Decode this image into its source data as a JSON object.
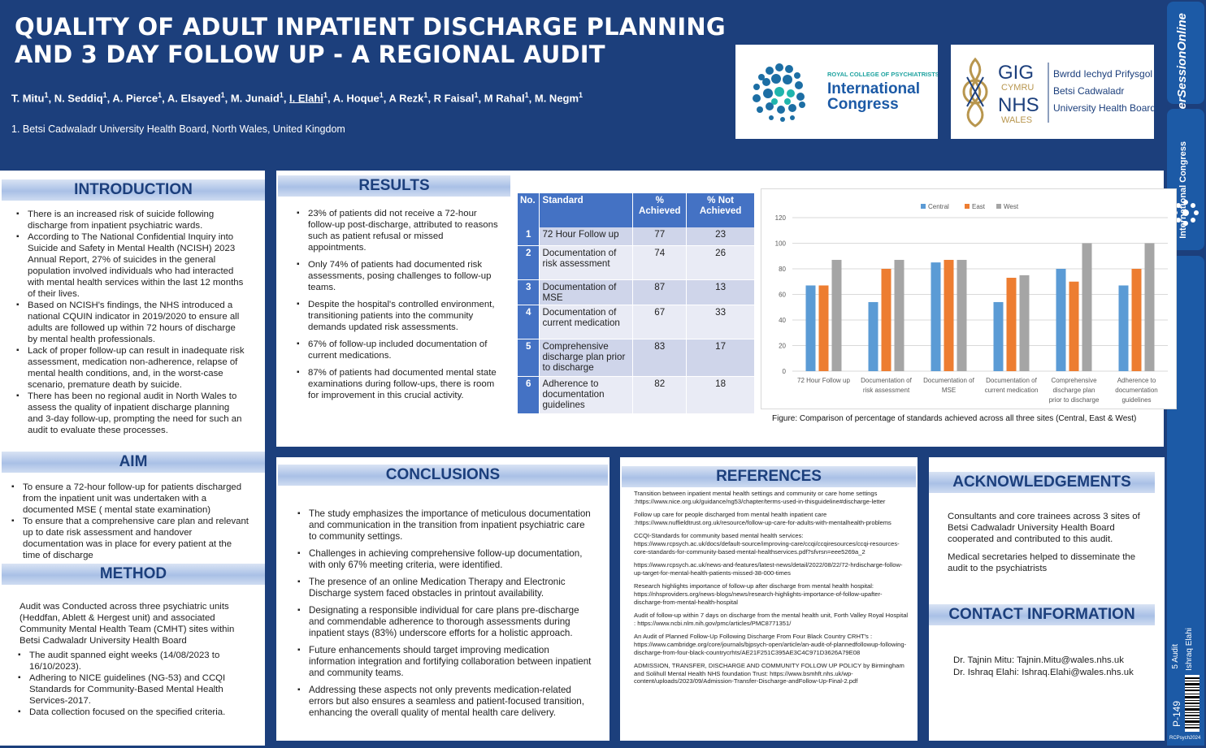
{
  "header": {
    "title_line1": "QUALITY OF ADULT INPATIENT DISCHARGE PLANNING",
    "title_line2": "AND 3 DAY FOLLOW UP - A REGIONAL AUDIT",
    "authors": [
      {
        "name": "T. Mitu",
        "sup": "1"
      },
      {
        "name": "N. Seddiq",
        "sup": "1"
      },
      {
        "name": "A. Pierce",
        "sup": "1"
      },
      {
        "name": "A. Elsayed",
        "sup": "1"
      },
      {
        "name": "M. Junaid",
        "sup": "1"
      },
      {
        "name": "I. Elahi",
        "sup": "1"
      },
      {
        "name": "A. Hoque",
        "sup": "1"
      },
      {
        "name": "A Rezk",
        "sup": "1"
      },
      {
        "name": "R Faisal",
        "sup": "1"
      },
      {
        "name": "M Rahal",
        "sup": "1"
      },
      {
        "name": "M. Negm",
        "sup": "1"
      }
    ],
    "affiliation": "1. Betsi Cadwaladr University Health Board, North Wales, United Kingdom",
    "logo_rcpsych": {
      "line1": "ROYAL COLLEGE OF PSYCHIATRISTS",
      "line2": "International",
      "line3": "Congress"
    },
    "logo_nhs": {
      "gig": "GIG",
      "cymru": "CYMRU",
      "nhs": "NHS",
      "wales": "WALES",
      "line1": "Bwrdd Iechyd Prifysgol",
      "line2": "Betsi Cadwaladr",
      "line3": "University Health Board"
    }
  },
  "side_strip": {
    "top_text": "PosterSessionOnline",
    "mid_text": "International Congress",
    "audit": "5 Audit",
    "author": "Ishraq Elahi",
    "poster_no": "P-149",
    "footer": "RCPsych2024"
  },
  "introduction": {
    "heading": "INTRODUCTION",
    "bullets": [
      "There is an increased risk of suicide following discharge from inpatient psychiatric wards.",
      "According to The National Confidential Inquiry into Suicide and Safety in Mental Health (NCISH) 2023 Annual Report, 27% of suicides in the general population involved individuals who had interacted with mental health services within the last 12 months of their lives.",
      "Based on NCISH's findings, the NHS introduced a national CQUIN indicator in 2019/2020 to ensure all adults are followed up within 72 hours of discharge by mental health professionals.",
      "Lack of proper follow-up can result in inadequate risk assessment, medication non-adherence, relapse of mental health conditions, and, in the worst-case scenario, premature death by suicide.",
      "There has been no regional audit in North Wales to assess the quality of inpatient discharge planning and 3-day follow-up, prompting the need for such an audit to evaluate these processes."
    ]
  },
  "aim": {
    "heading": "AIM",
    "bullets": [
      "To ensure a 72-hour follow-up for patients discharged from the inpatient unit was undertaken with a documented MSE ( mental state examination)",
      "To ensure that a comprehensive care plan and relevant up to date risk assessment and handover documentation was in place for every patient at the time of discharge"
    ]
  },
  "method": {
    "heading": "METHOD",
    "intro": "Audit was Conducted across three psychiatric units (Heddfan, Ablett & Hergest unit) and associated Community Mental Health Team (CMHT) sites within Betsi Cadwaladr University Health Board",
    "bullets": [
      "The audit spanned eight weeks (14/08/2023 to 16/10/2023).",
      "Adhering to NICE guidelines (NG-53) and CCQI Standards for Community-Based Mental Health Services-2017.",
      "Data collection focused on the specified criteria."
    ]
  },
  "results": {
    "heading": "RESULTS",
    "bullets": [
      "23% of patients did not receive a 72-hour follow-up post-discharge, attributed to reasons such as patient refusal or missed appointments.",
      "Only 74% of patients had documented risk assessments, posing challenges to follow-up teams.",
      "Despite the hospital's controlled environment, transitioning patients into the community demands updated risk assessments.",
      "67% of follow-up included documentation of current medications.",
      "87% of patients had documented mental state examinations during follow-ups, there is room for improvement in this crucial activity."
    ],
    "table": {
      "headers": [
        "No.",
        "Standard",
        "% Achieved",
        "% Not Achieved"
      ],
      "rows": [
        {
          "no": "1",
          "standard": "72 Hour Follow up",
          "achieved": "77",
          "not": "23"
        },
        {
          "no": "2",
          "standard": "Documentation of risk assessment",
          "achieved": "74",
          "not": "26"
        },
        {
          "no": "3",
          "standard": "Documentation of MSE",
          "achieved": "87",
          "not": "13"
        },
        {
          "no": "4",
          "standard": "Documentation of current medication",
          "achieved": "67",
          "not": "33"
        },
        {
          "no": "5",
          "standard": "Comprehensive discharge plan prior to discharge",
          "achieved": "83",
          "not": "17"
        },
        {
          "no": "6",
          "standard": "Adherence to documentation guidelines",
          "achieved": "82",
          "not": "18"
        }
      ]
    },
    "figure_caption": "Figure: Comparison of percentage of standards achieved across all three sites (Central, East & West)"
  },
  "chart_data": {
    "type": "bar",
    "categories": [
      "72 Hour Follow up",
      "Documentation of risk assessment",
      "Documentation of MSE",
      "Documentation of current medication",
      "Comprehensive discharge plan prior to discharge",
      "Adherence to documentation guidelines"
    ],
    "category_lines": [
      [
        "72 Hour Follow up"
      ],
      [
        "Documentation of",
        "risk assessment"
      ],
      [
        "Documentation of",
        "MSE"
      ],
      [
        "Documentation of",
        "current medication"
      ],
      [
        "Comprehensive",
        "discharge plan",
        "prior to discharge"
      ],
      [
        "Adherence to",
        "documentation",
        "guidelines"
      ]
    ],
    "series": [
      {
        "name": "Central",
        "color": "#5b9bd5",
        "values": [
          67,
          54,
          85,
          54,
          80,
          67
        ]
      },
      {
        "name": "East",
        "color": "#ed7d31",
        "values": [
          67,
          80,
          87,
          73,
          70,
          80
        ]
      },
      {
        "name": "West",
        "color": "#a5a5a5",
        "values": [
          87,
          87,
          87,
          75,
          100,
          100
        ]
      }
    ],
    "ylim": [
      0,
      120
    ],
    "yticks": [
      "0",
      "20",
      "40",
      "60",
      "80",
      "100",
      "120"
    ],
    "grid": true,
    "legend": "top-center"
  },
  "conclusions": {
    "heading": "CONCLUSIONS",
    "bullets": [
      "The study emphasizes the importance of meticulous documentation and communication in the transition from inpatient psychiatric care to community settings.",
      "Challenges in achieving comprehensive follow-up documentation, with only 67% meeting criteria, were identified.",
      "The presence of an online Medication Therapy and Electronic Discharge system faced obstacles in printout availability.",
      "Designating a responsible individual for care plans pre-discharge and commendable adherence to thorough assessments during inpatient stays (83%) underscore efforts for a holistic approach.",
      "Future enhancements should target improving medication information integration and fortifying collaboration between inpatient and community teams.",
      "Addressing these aspects not only prevents medication-related errors but also ensures a seamless and patient-focused transition, enhancing the overall quality of mental health care delivery."
    ]
  },
  "references": {
    "heading": "REFERENCES",
    "items": [
      "Transition between inpatient mental health settings and community or care home settings :https://www.nice.org.uk/guidance/ng53/chapter/terms-used-in-thisguideline#discharge-letter",
      "Follow up care for people discharged from mental health inpatient care :https://www.nuffieldtrust.org.uk/resource/follow-up-care-for-adults-with-mentalhealth-problems",
      "CCQI-Standards for community based mental health services: https://www.rcpsych.ac.uk/docs/default-source/improving-care/ccqi/ccqiresources/ccqi-resources-core-standards-for-community-based-mental-healthservices.pdf?sfvrsn=eee5269a_2",
      "https://www.rcpsych.ac.uk/news-and-features/latest-news/detail/2022/08/22/72-hrdischarge-follow-up-target-for-mental-health-patients-missed-38-000-times",
      "Research highlights importance of follow-up after discharge from mental health hospital: https://nhsproviders.org/news-blogs/news/research-highlights-importance-of-follow-upafter-discharge-from-mental-health-hospital",
      "Audit of follow-up within 7 days on discharge from the mental health unit, Forth Valley Royal Hospital : https://www.ncbi.nlm.nih.gov/pmc/articles/PMC8771351/",
      "An Audit of Planned Follow-Up Following Discharge From Four Black Country CRHT's : https://www.cambridge.org/core/journals/bjpsych-open/article/an-audit-of-plannedfollowup-following-discharge-from-four-black-countrycrhts/AE21F251C395AE3C4C971D3626A79E08",
      "ADMISSION, TRANSFER, DISCHARGE AND COMMUNITY FOLLOW UP POLICY by Birmingham and Solihull Mental Health NHS foundation Trust: https://www.bsmhft.nhs.uk/wp-content/uploads/2023/09/Admission-Transfer-Discharge-andFollow-Up-Final-2.pdf"
    ]
  },
  "acknowledgements": {
    "heading": "ACKNOWLEDGEMENTS",
    "paragraphs": [
      "Consultants and core trainees across 3 sites of Betsi Cadwaladr University Health Board cooperated and contributed to this audit.",
      "Medical secretaries helped to disseminate the audit to the psychiatrists"
    ]
  },
  "contact": {
    "heading": "CONTACT INFORMATION",
    "lines": [
      "Dr. Tajnin Mitu: Tajnin.Mitu@wales.nhs.uk",
      "Dr. Ishraq Elahi: Ishraq.Elahi@wales.nhs.uk"
    ]
  }
}
